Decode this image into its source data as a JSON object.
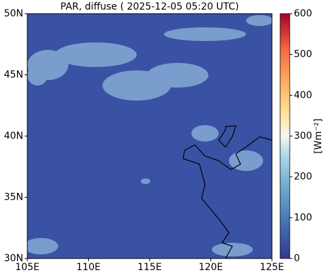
{
  "chart_data": {
    "type": "map",
    "title": "PAR, diffuse ( 2025-12-05 05:20 UTC)",
    "xlim": [
      105,
      125
    ],
    "xticks": [
      {
        "value": 105,
        "label": "105E"
      },
      {
        "value": 110,
        "label": "110E"
      },
      {
        "value": 115,
        "label": "115E"
      },
      {
        "value": 120,
        "label": "120E"
      },
      {
        "value": 125,
        "label": "125E"
      }
    ],
    "ylim": [
      30,
      50
    ],
    "yticks": [
      {
        "value": 30,
        "label": "30N"
      },
      {
        "value": 35,
        "label": "35N"
      },
      {
        "value": 40,
        "label": "40N"
      },
      {
        "value": 45,
        "label": "45N"
      },
      {
        "value": 50,
        "label": "50N"
      }
    ],
    "colorbar": {
      "label": "[Wm⁻²]",
      "lim": [
        0,
        600
      ],
      "ticks": [
        0,
        100,
        200,
        300,
        400,
        500,
        600
      ]
    }
  }
}
